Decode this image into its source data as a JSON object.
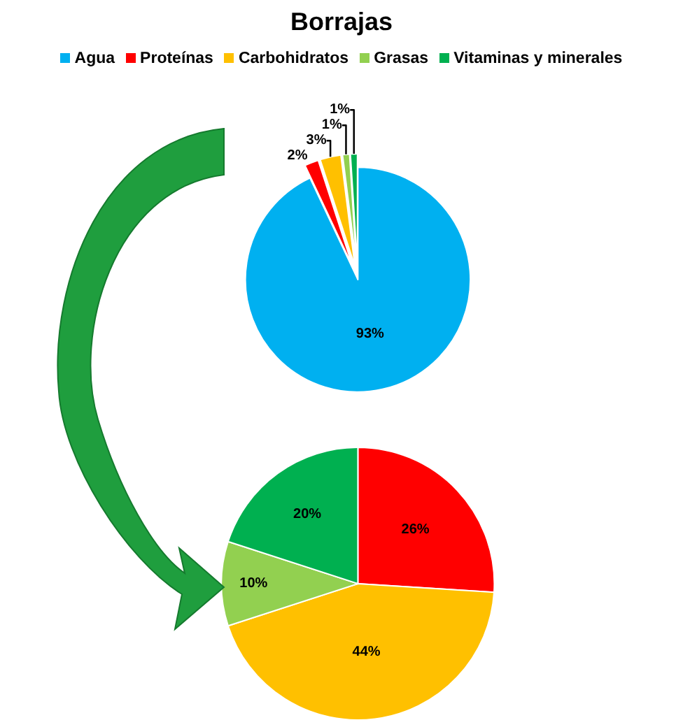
{
  "chart_data": [
    {
      "type": "pie",
      "title": "Borrajas",
      "categories": [
        "Agua",
        "Proteínas",
        "Carbohidratos",
        "Grasas",
        "Vitaminas y minerales"
      ],
      "values": [
        93,
        2,
        3,
        1,
        1
      ],
      "colors": [
        "#00b0f0",
        "#ff0000",
        "#ffc000",
        "#92d050",
        "#00b050"
      ],
      "value_labels": [
        "93%",
        "2%",
        "3%",
        "1%",
        "1%"
      ],
      "legend": "top"
    },
    {
      "type": "pie",
      "categories": [
        null,
        null,
        null,
        null
      ],
      "values": [
        26,
        44,
        10,
        20
      ],
      "colors": [
        "#ff0000",
        "#ffc000",
        "#92d050",
        "#00b050"
      ],
      "value_labels": [
        "26%",
        "44%",
        "10%",
        "20%"
      ]
    }
  ]
}
